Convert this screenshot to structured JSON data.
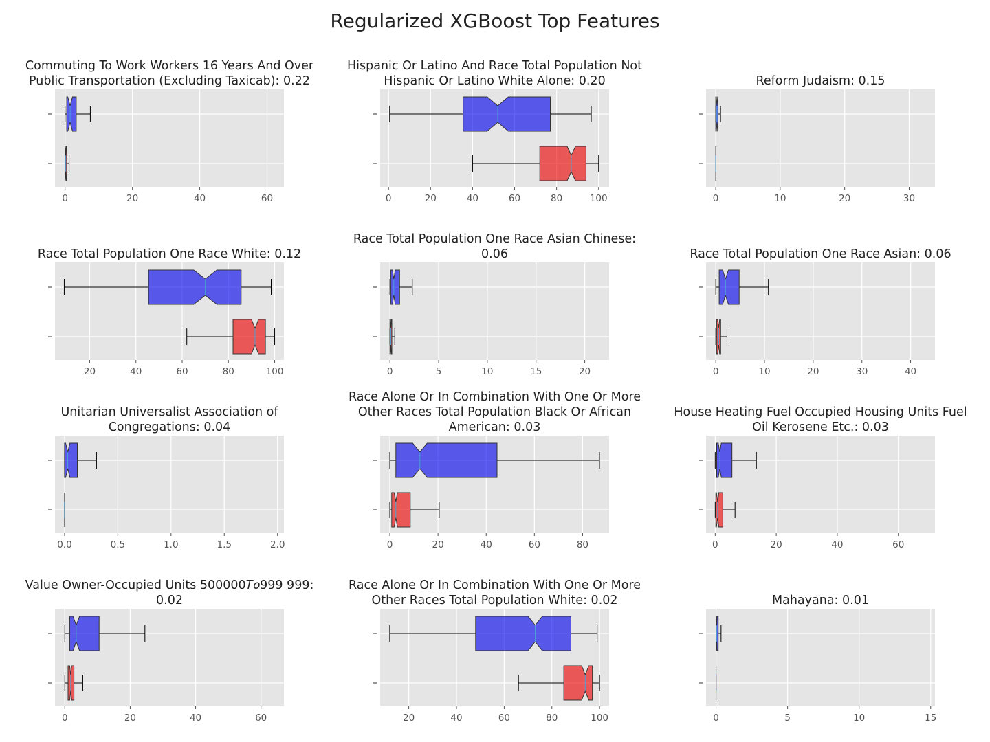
{
  "figure": {
    "title": "Regularized XGBoost Top Features"
  },
  "colors": {
    "group_a": "#0000ee",
    "group_b": "#ee0000",
    "panel_bg": "#e5e5e5",
    "grid": "#ffffff"
  },
  "chart_data": [
    {
      "type": "box",
      "title": [
        "Commuting To Work Workers 16 Years And Over",
        "Public Transportation (Excluding Taxicab): 0.22"
      ],
      "xlim": [
        -3,
        65
      ],
      "xticks": [
        0,
        20,
        40,
        60
      ],
      "series": [
        {
          "color": "#0000ee",
          "whislo": 0,
          "q1": 0.5,
          "med": 1.5,
          "q3": 3.3,
          "whishi": 7.5,
          "notch": [
            0.8,
            2.2
          ]
        },
        {
          "color": "#ee0000",
          "whislo": 0,
          "q1": 0,
          "med": 0.2,
          "q3": 0.5,
          "whishi": 1.2,
          "notch": [
            0.05,
            0.35
          ]
        }
      ]
    },
    {
      "type": "box",
      "title": [
        "Hispanic Or Latino And Race Total Population Not",
        "Hispanic Or Latino White Alone: 0.20"
      ],
      "xlim": [
        -4,
        105
      ],
      "xticks": [
        0,
        20,
        40,
        60,
        80,
        100
      ],
      "series": [
        {
          "color": "#0000ee",
          "whislo": 0.5,
          "q1": 35.5,
          "med": 52,
          "q3": 77,
          "whishi": 96.5,
          "notch": [
            47,
            57
          ]
        },
        {
          "color": "#ee0000",
          "whislo": 40,
          "q1": 72,
          "med": 87,
          "q3": 94,
          "whishi": 100,
          "notch": [
            85,
            89
          ]
        }
      ]
    },
    {
      "type": "box",
      "title": [
        "Reform Judaism: 0.15"
      ],
      "xlim": [
        -1.5,
        34
      ],
      "xticks": [
        0,
        10,
        20,
        30
      ],
      "series": [
        {
          "color": "#0000ee",
          "whislo": 0,
          "q1": 0,
          "med": 0.2,
          "q3": 0.35,
          "whishi": 0.75,
          "notch": [
            0.1,
            0.3
          ]
        },
        {
          "color": "#ee0000",
          "whislo": 0,
          "q1": 0,
          "med": 0,
          "q3": 0,
          "whishi": 0,
          "notch": [
            0,
            0
          ]
        }
      ]
    },
    {
      "type": "box",
      "title": [
        "Race Total Population One Race White: 0.12"
      ],
      "xlim": [
        5,
        104
      ],
      "xticks": [
        20,
        40,
        60,
        80,
        100
      ],
      "series": [
        {
          "color": "#0000ee",
          "whislo": 9,
          "q1": 45.5,
          "med": 70,
          "q3": 85.5,
          "whishi": 98.5,
          "notch": [
            65,
            75
          ]
        },
        {
          "color": "#ee0000",
          "whislo": 62,
          "q1": 82,
          "med": 91.5,
          "q3": 96,
          "whishi": 100,
          "notch": [
            90,
            93
          ]
        }
      ]
    },
    {
      "type": "box",
      "title": [
        "Race Total Population One Race Asian Chinese:",
        "0.06"
      ],
      "xlim": [
        -1,
        22.5
      ],
      "xticks": [
        0,
        5,
        10,
        15,
        20
      ],
      "series": [
        {
          "color": "#0000ee",
          "whislo": 0,
          "q1": 0.1,
          "med": 0.4,
          "q3": 1,
          "whishi": 2.3,
          "notch": [
            0.25,
            0.55
          ]
        },
        {
          "color": "#ee0000",
          "whislo": 0,
          "q1": 0,
          "med": 0.1,
          "q3": 0.2,
          "whishi": 0.5,
          "notch": [
            0.05,
            0.15
          ]
        }
      ]
    },
    {
      "type": "box",
      "title": [
        "Race Total Population One Race Asian: 0.06"
      ],
      "xlim": [
        -2,
        45
      ],
      "xticks": [
        0,
        10,
        20,
        30,
        40
      ],
      "series": [
        {
          "color": "#0000ee",
          "whislo": 0,
          "q1": 0.7,
          "med": 2,
          "q3": 4.8,
          "whishi": 10.8,
          "notch": [
            1.4,
            2.6
          ]
        },
        {
          "color": "#ee0000",
          "whislo": 0,
          "q1": 0.2,
          "med": 0.6,
          "q3": 1,
          "whishi": 2.3,
          "notch": [
            0.4,
            0.8
          ]
        }
      ]
    },
    {
      "type": "box",
      "title": [
        "Unitarian Universalist Association of",
        "Congregations: 0.04"
      ],
      "xlim": [
        -0.09,
        2.06
      ],
      "xticks": [
        0.0,
        0.5,
        1.0,
        1.5,
        2.0
      ],
      "xtick_labels": [
        "0.0",
        "0.5",
        "1.0",
        "1.5",
        "2.0"
      ],
      "series": [
        {
          "color": "#0000ee",
          "whislo": 0,
          "q1": 0,
          "med": 0.03,
          "q3": 0.12,
          "whishi": 0.3,
          "notch": [
            0.01,
            0.05
          ]
        },
        {
          "color": "#ee0000",
          "whislo": 0,
          "q1": 0,
          "med": 0,
          "q3": 0,
          "whishi": 0,
          "notch": [
            0,
            0
          ]
        }
      ]
    },
    {
      "type": "box",
      "title": [
        "Race Alone Or In Combination With One Or More",
        "Other Races Total Population Black Or African",
        "American: 0.03"
      ],
      "xlim": [
        -4,
        91
      ],
      "xticks": [
        0,
        20,
        40,
        60,
        80
      ],
      "series": [
        {
          "color": "#0000ee",
          "whislo": 0,
          "q1": 2.5,
          "med": 12.5,
          "q3": 44.5,
          "whishi": 87,
          "notch": [
            9.5,
            15.5
          ]
        },
        {
          "color": "#ee0000",
          "whislo": 0,
          "q1": 0.8,
          "med": 2.5,
          "q3": 8.5,
          "whishi": 20.5,
          "notch": [
            1.8,
            3.2
          ]
        }
      ]
    },
    {
      "type": "box",
      "title": [
        "House Heating Fuel Occupied Housing Units Fuel",
        "Oil Kerosene Etc.: 0.03"
      ],
      "xlim": [
        -3,
        72
      ],
      "xticks": [
        0,
        20,
        40,
        60
      ],
      "series": [
        {
          "color": "#0000ee",
          "whislo": 0,
          "q1": 0.5,
          "med": 1.5,
          "q3": 5.5,
          "whishi": 13.5,
          "notch": [
            1,
            2
          ]
        },
        {
          "color": "#ee0000",
          "whislo": 0,
          "q1": 0.2,
          "med": 0.8,
          "q3": 2.5,
          "whishi": 6.5,
          "notch": [
            0.4,
            1.2
          ]
        }
      ]
    },
    {
      "type": "box",
      "title": [
        "Value Owner-Occupied Units 500000𝑇𝑜999 999:",
        "0.02"
      ],
      "xlim": [
        -3,
        67
      ],
      "xticks": [
        0,
        20,
        40,
        60
      ],
      "series": [
        {
          "color": "#0000ee",
          "whislo": 0,
          "q1": 1.5,
          "med": 3.5,
          "q3": 10.5,
          "whishi": 24.5,
          "notch": [
            2.5,
            4.5
          ]
        },
        {
          "color": "#ee0000",
          "whislo": 0,
          "q1": 1,
          "med": 1.8,
          "q3": 2.8,
          "whishi": 5.5,
          "notch": [
            1.5,
            2.1
          ]
        }
      ]
    },
    {
      "type": "box",
      "title": [
        "Race Alone Or In Combination With One Or More",
        "Other Races Total Population White: 0.02"
      ],
      "xlim": [
        8,
        104
      ],
      "xticks": [
        20,
        40,
        60,
        80,
        100
      ],
      "series": [
        {
          "color": "#0000ee",
          "whislo": 12,
          "q1": 48,
          "med": 73,
          "q3": 88,
          "whishi": 99,
          "notch": [
            70,
            76
          ]
        },
        {
          "color": "#ee0000",
          "whislo": 66,
          "q1": 85,
          "med": 94,
          "q3": 97,
          "whishi": 100,
          "notch": [
            92.5,
            95.5
          ]
        }
      ]
    },
    {
      "type": "box",
      "title": [
        "Mahayana: 0.01"
      ],
      "xlim": [
        -0.7,
        15.3
      ],
      "xticks": [
        0,
        5,
        10,
        15
      ],
      "series": [
        {
          "color": "#0000ee",
          "whislo": 0,
          "q1": 0,
          "med": 0.05,
          "q3": 0.15,
          "whishi": 0.35,
          "notch": [
            0.02,
            0.08
          ]
        },
        {
          "color": "#ee0000",
          "whislo": 0,
          "q1": 0,
          "med": 0,
          "q3": 0,
          "whishi": 0,
          "notch": [
            0,
            0
          ]
        }
      ]
    }
  ]
}
